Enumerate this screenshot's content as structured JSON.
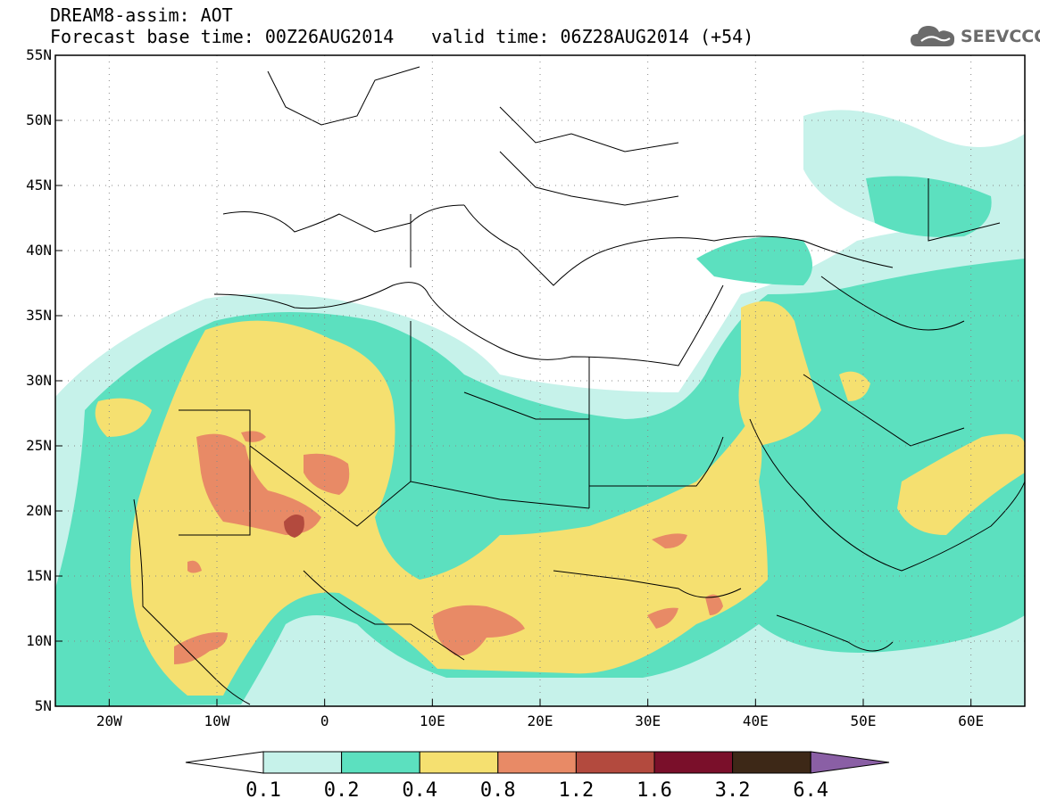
{
  "header": {
    "title_line1": "DREAM8-assim: AOT",
    "title_line2": "Forecast base time: 00Z26AUG2014",
    "valid_time": "valid time: 06Z28AUG2014 (+54)",
    "logo_text": "SEEVCCC",
    "logo_icon": "cloud-icon"
  },
  "map": {
    "lat_labels": [
      "55N",
      "50N",
      "45N",
      "40N",
      "35N",
      "30N",
      "25N",
      "20N",
      "15N",
      "10N",
      "5N"
    ],
    "lat_values": [
      55,
      50,
      45,
      40,
      35,
      30,
      25,
      20,
      15,
      10,
      5
    ],
    "lon_labels": [
      "20W",
      "10W",
      "0",
      "10E",
      "20E",
      "30E",
      "40E",
      "50E",
      "60E"
    ],
    "lon_values": [
      -20,
      -10,
      0,
      10,
      20,
      30,
      40,
      50,
      60
    ],
    "lon_range": [
      -25,
      65
    ],
    "lat_range": [
      5,
      55
    ],
    "grid": true
  },
  "colorbar": {
    "labels": [
      "0.1",
      "0.2",
      "0.4",
      "0.8",
      "1.2",
      "1.6",
      "3.2",
      "6.4"
    ],
    "colors": [
      "#c6f2ea",
      "#5ce0bf",
      "#f5e070",
      "#e88a66",
      "#b34a3e",
      "#7a0f2a",
      "#3d2817"
    ],
    "extend_min_color": "#ffffff",
    "extend_max_color": "#8a5fa5"
  }
}
